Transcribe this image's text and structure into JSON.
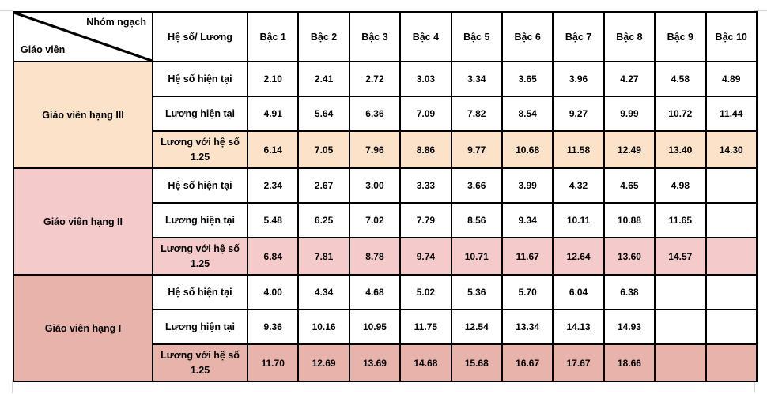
{
  "table": {
    "corner": {
      "axis_top_right": "Nhóm ngạch",
      "axis_bottom_left": "Giáo viên"
    },
    "measure_header": "Hệ số/ Lương",
    "level_headers": [
      "Bậc 1",
      "Bậc 2",
      "Bậc 3",
      "Bậc 4",
      "Bậc 5",
      "Bậc 6",
      "Bậc 7",
      "Bậc 8",
      "Bậc 9",
      "Bậc 10"
    ],
    "border_color": "#000000",
    "groups": [
      {
        "name": "Giáo viên hạng III",
        "color": "#FBE2C9",
        "rows": [
          {
            "label": "Hệ số hiện tại",
            "highlighted": false,
            "values": [
              "2.10",
              "2.41",
              "2.72",
              "3.03",
              "3.34",
              "3.65",
              "3.96",
              "4.27",
              "4.58",
              "4.89"
            ]
          },
          {
            "label": "Lương hiện tại",
            "highlighted": false,
            "values": [
              "4.91",
              "5.64",
              "6.36",
              "7.09",
              "7.82",
              "8.54",
              "9.27",
              "9.99",
              "10.72",
              "11.44"
            ]
          },
          {
            "label": "Lương với hệ số 1.25",
            "highlighted": true,
            "values": [
              "6.14",
              "7.05",
              "7.96",
              "8.86",
              "9.77",
              "10.68",
              "11.58",
              "12.49",
              "13.40",
              "14.30"
            ]
          }
        ]
      },
      {
        "name": "Giáo viên hạng II",
        "color": "#F4CACB",
        "rows": [
          {
            "label": "Hệ số hiện tại",
            "highlighted": false,
            "values": [
              "2.34",
              "2.67",
              "3.00",
              "3.33",
              "3.66",
              "3.99",
              "4.32",
              "4.65",
              "4.98",
              ""
            ]
          },
          {
            "label": "Lương hiện tại",
            "highlighted": false,
            "values": [
              "5.48",
              "6.25",
              "7.02",
              "7.79",
              "8.56",
              "9.34",
              "10.11",
              "10.88",
              "11.65",
              ""
            ]
          },
          {
            "label": "Lương với hệ số 1.25",
            "highlighted": true,
            "values": [
              "6.84",
              "7.81",
              "8.78",
              "9.74",
              "10.71",
              "11.67",
              "12.64",
              "13.60",
              "14.57",
              ""
            ]
          }
        ]
      },
      {
        "name": "Giáo viên hạng I",
        "color": "#E7B3AA",
        "rows": [
          {
            "label": "Hệ số hiện tại",
            "highlighted": false,
            "values": [
              "4.00",
              "4.34",
              "4.68",
              "5.02",
              "5.36",
              "5.70",
              "6.04",
              "6.38",
              "",
              ""
            ]
          },
          {
            "label": "Lương hiện tại",
            "highlighted": false,
            "values": [
              "9.36",
              "10.16",
              "10.95",
              "11.75",
              "12.54",
              "13.34",
              "14.13",
              "14.93",
              "",
              ""
            ]
          },
          {
            "label": "Lương với hệ số 1.25",
            "highlighted": true,
            "values": [
              "11.70",
              "12.69",
              "13.69",
              "14.68",
              "15.68",
              "16.67",
              "17.67",
              "18.66",
              "",
              ""
            ]
          }
        ]
      }
    ]
  }
}
